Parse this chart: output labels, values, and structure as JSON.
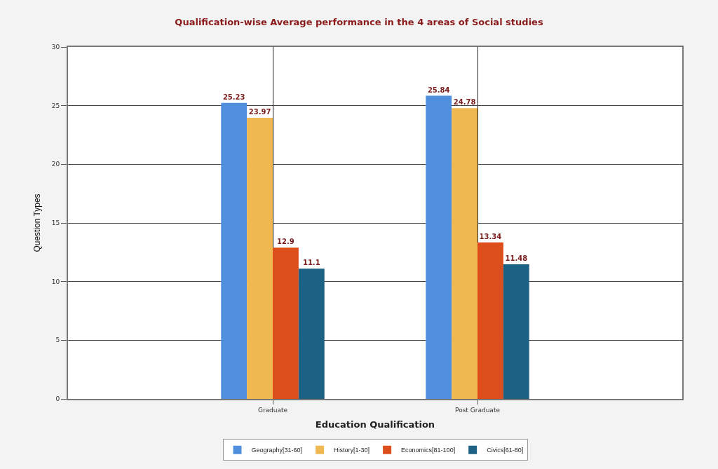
{
  "chart_data": {
    "type": "bar",
    "title": "Qualification-wise Average performance in the 4 areas of Social studies",
    "xlabel": "Education Qualification",
    "ylabel": "Question Types",
    "categories": [
      "Graduate",
      "Post Graduate"
    ],
    "series": [
      {
        "name": "Geography[31-60]",
        "color": "#4f8fde",
        "values": [
          25.23,
          25.84
        ]
      },
      {
        "name": "History[1-30]",
        "color": "#f0b850",
        "values": [
          23.97,
          24.78
        ]
      },
      {
        "name": "Economics[81-100]",
        "color": "#dc4f1c",
        "values": [
          12.9,
          13.34
        ]
      },
      {
        "name": "Civics[61-80]",
        "color": "#1d6184",
        "values": [
          11.1,
          11.48
        ]
      }
    ],
    "ylim": [
      0,
      30
    ],
    "yticks": [
      0,
      5,
      10,
      15,
      20,
      25,
      30
    ],
    "grid": true,
    "legend": "bottom",
    "data_labels": true
  }
}
